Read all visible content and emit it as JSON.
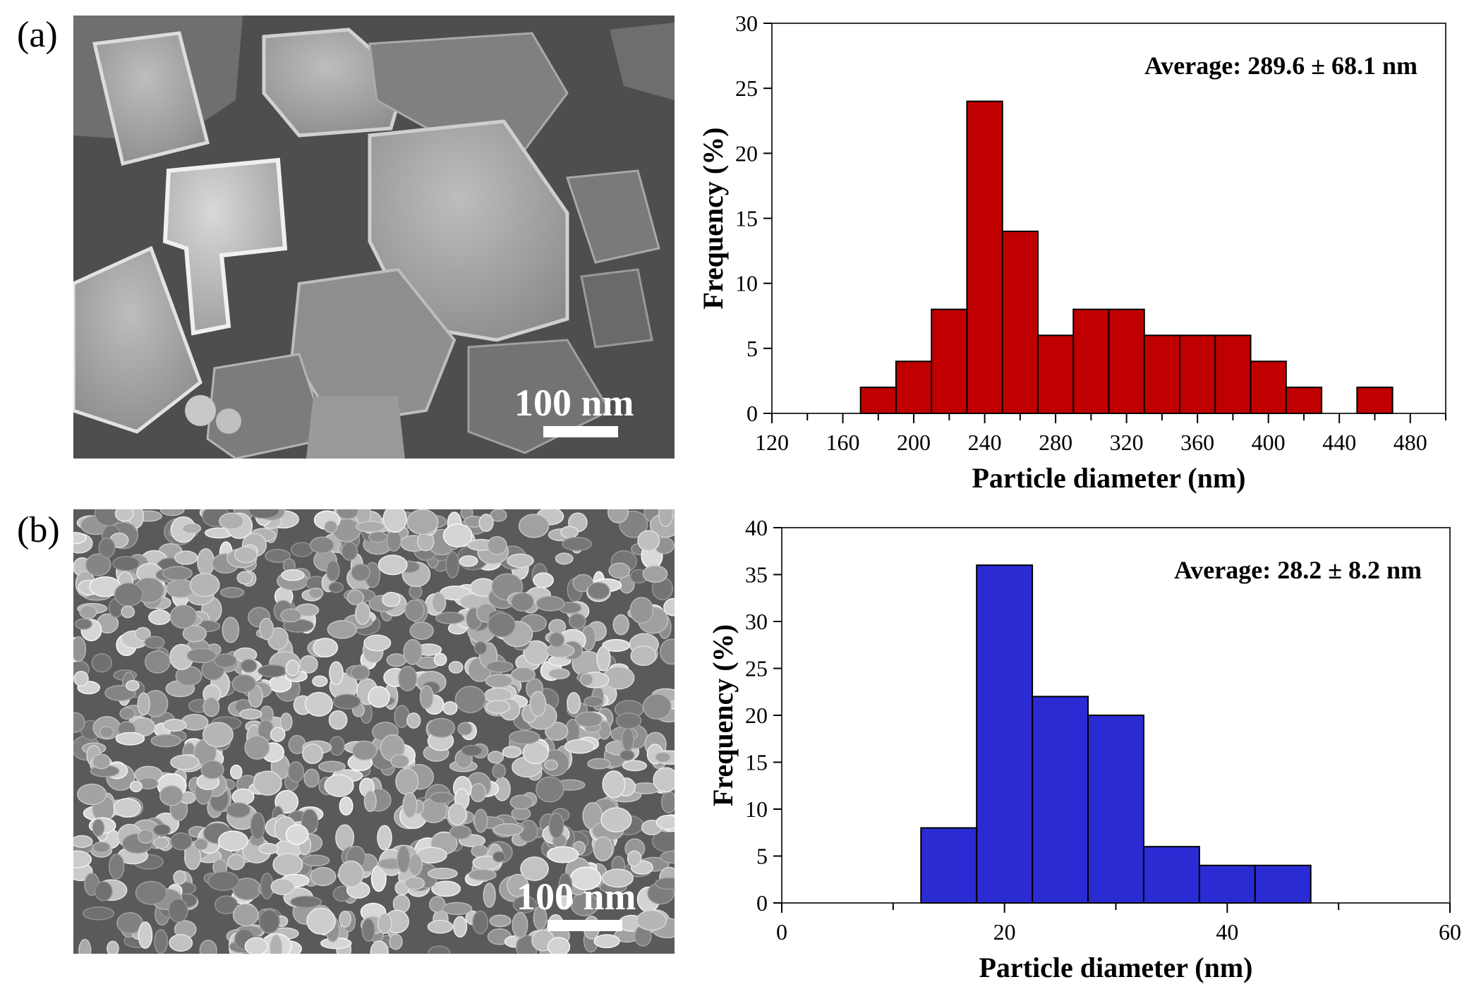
{
  "figure": {
    "panel_a_label": "(a)",
    "panel_b_label": "(b)",
    "sem_a_scalebar": "100 nm",
    "sem_b_scalebar": "100 nm"
  },
  "colors": {
    "bar_a": "#c00000",
    "bar_b": "#2b2bd4",
    "edge": "#000000"
  },
  "chart_data": [
    {
      "type": "bar",
      "panel": "(a)",
      "annotation": "Average: 289.6 ± 68.1 nm",
      "xlabel": "Particle diameter (nm)",
      "ylabel": "Frequency (%)",
      "xlim": [
        120,
        500
      ],
      "ylim": [
        0,
        30
      ],
      "xticks": [
        120,
        160,
        200,
        240,
        280,
        320,
        360,
        400,
        440,
        480
      ],
      "yticks": [
        0,
        5,
        10,
        15,
        20,
        25,
        30
      ],
      "bin_width": 20,
      "bins": [
        {
          "x": 180,
          "value": 2
        },
        {
          "x": 200,
          "value": 4
        },
        {
          "x": 220,
          "value": 8
        },
        {
          "x": 240,
          "value": 24
        },
        {
          "x": 260,
          "value": 14
        },
        {
          "x": 280,
          "value": 6
        },
        {
          "x": 300,
          "value": 8
        },
        {
          "x": 320,
          "value": 8
        },
        {
          "x": 340,
          "value": 6
        },
        {
          "x": 360,
          "value": 6
        },
        {
          "x": 380,
          "value": 6
        },
        {
          "x": 400,
          "value": 4
        },
        {
          "x": 420,
          "value": 2
        },
        {
          "x": 460,
          "value": 2
        }
      ],
      "grid": false
    },
    {
      "type": "bar",
      "panel": "(b)",
      "annotation": "Average: 28.2 ± 8.2 nm",
      "xlabel": "Particle diameter (nm)",
      "ylabel": "Frequency (%)",
      "xlim": [
        0,
        60
      ],
      "ylim": [
        0,
        40
      ],
      "xticks": [
        0,
        20,
        40,
        60
      ],
      "yticks": [
        0,
        5,
        10,
        15,
        20,
        25,
        30,
        35,
        40
      ],
      "bin_width": 5,
      "bins": [
        {
          "x": 15,
          "value": 8
        },
        {
          "x": 20,
          "value": 36
        },
        {
          "x": 25,
          "value": 22
        },
        {
          "x": 30,
          "value": 20
        },
        {
          "x": 35,
          "value": 6
        },
        {
          "x": 40,
          "value": 4
        },
        {
          "x": 45,
          "value": 4
        }
      ],
      "grid": false
    }
  ]
}
